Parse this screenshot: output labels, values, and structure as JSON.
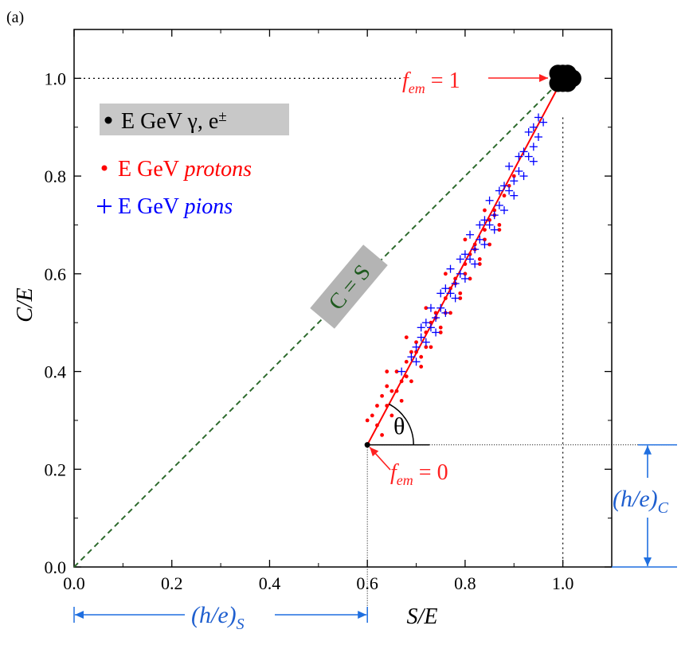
{
  "panel_label": "(a)",
  "chart_data": {
    "type": "scatter",
    "xlabel": "S/E",
    "ylabel": "C/E",
    "xlim": [
      0.0,
      1.1
    ],
    "ylim": [
      0.0,
      1.1
    ],
    "xticks": [
      "0.0",
      "0.2",
      "0.4",
      "0.6",
      "0.8",
      "1.0"
    ],
    "yticks": [
      "0.0",
      "0.2",
      "0.4",
      "0.6",
      "0.8",
      "1.0"
    ],
    "grid": false,
    "legend_position": "top-left",
    "series": [
      {
        "name": "E GeV γ, e±",
        "color": "#000000",
        "marker": "filled-circle",
        "points": [
          [
            1.0,
            1.0
          ],
          [
            0.99,
            1.01
          ],
          [
            1.01,
            0.99
          ],
          [
            1.0,
            0.99
          ],
          [
            0.99,
            0.99
          ],
          [
            1.01,
            1.01
          ],
          [
            1.0,
            1.01
          ],
          [
            1.02,
            1.0
          ]
        ]
      },
      {
        "name": "E GeV protons",
        "color": "#ff0000",
        "marker": "dot",
        "points": [
          [
            0.62,
            0.33
          ],
          [
            0.63,
            0.35
          ],
          [
            0.61,
            0.31
          ],
          [
            0.64,
            0.37
          ],
          [
            0.65,
            0.36
          ],
          [
            0.62,
            0.29
          ],
          [
            0.66,
            0.4
          ],
          [
            0.67,
            0.38
          ],
          [
            0.64,
            0.33
          ],
          [
            0.68,
            0.42
          ],
          [
            0.69,
            0.44
          ],
          [
            0.66,
            0.36
          ],
          [
            0.7,
            0.46
          ],
          [
            0.71,
            0.43
          ],
          [
            0.68,
            0.39
          ],
          [
            0.72,
            0.48
          ],
          [
            0.73,
            0.5
          ],
          [
            0.7,
            0.44
          ],
          [
            0.74,
            0.52
          ],
          [
            0.75,
            0.49
          ],
          [
            0.72,
            0.45
          ],
          [
            0.76,
            0.55
          ],
          [
            0.77,
            0.57
          ],
          [
            0.74,
            0.51
          ],
          [
            0.78,
            0.59
          ],
          [
            0.79,
            0.56
          ],
          [
            0.76,
            0.52
          ],
          [
            0.8,
            0.62
          ],
          [
            0.81,
            0.64
          ],
          [
            0.78,
            0.58
          ],
          [
            0.82,
            0.66
          ],
          [
            0.83,
            0.63
          ],
          [
            0.8,
            0.6
          ],
          [
            0.84,
            0.69
          ],
          [
            0.85,
            0.71
          ],
          [
            0.82,
            0.65
          ],
          [
            0.86,
            0.73
          ],
          [
            0.87,
            0.7
          ],
          [
            0.84,
            0.67
          ],
          [
            0.88,
            0.76
          ],
          [
            0.89,
            0.78
          ],
          [
            0.86,
            0.72
          ],
          [
            0.9,
            0.8
          ],
          [
            0.63,
            0.27
          ],
          [
            0.65,
            0.31
          ],
          [
            0.67,
            0.34
          ],
          [
            0.69,
            0.38
          ],
          [
            0.71,
            0.41
          ],
          [
            0.73,
            0.45
          ],
          [
            0.75,
            0.48
          ],
          [
            0.77,
            0.52
          ],
          [
            0.79,
            0.55
          ],
          [
            0.81,
            0.59
          ],
          [
            0.83,
            0.62
          ],
          [
            0.85,
            0.66
          ],
          [
            0.87,
            0.69
          ],
          [
            0.6,
            0.3
          ],
          [
            0.64,
            0.4
          ],
          [
            0.68,
            0.47
          ],
          [
            0.72,
            0.53
          ],
          [
            0.76,
            0.6
          ],
          [
            0.8,
            0.67
          ],
          [
            0.84,
            0.73
          ]
        ]
      },
      {
        "name": "E GeV pions",
        "color": "#0000ff",
        "marker": "plus",
        "points": [
          [
            0.67,
            0.4
          ],
          [
            0.69,
            0.43
          ],
          [
            0.7,
            0.45
          ],
          [
            0.71,
            0.47
          ],
          [
            0.72,
            0.46
          ],
          [
            0.73,
            0.49
          ],
          [
            0.74,
            0.51
          ],
          [
            0.75,
            0.53
          ],
          [
            0.76,
            0.52
          ],
          [
            0.77,
            0.56
          ],
          [
            0.78,
            0.58
          ],
          [
            0.79,
            0.6
          ],
          [
            0.8,
            0.59
          ],
          [
            0.81,
            0.63
          ],
          [
            0.82,
            0.65
          ],
          [
            0.83,
            0.67
          ],
          [
            0.84,
            0.66
          ],
          [
            0.85,
            0.7
          ],
          [
            0.86,
            0.72
          ],
          [
            0.87,
            0.74
          ],
          [
            0.88,
            0.73
          ],
          [
            0.89,
            0.77
          ],
          [
            0.9,
            0.79
          ],
          [
            0.91,
            0.81
          ],
          [
            0.92,
            0.8
          ],
          [
            0.93,
            0.84
          ],
          [
            0.94,
            0.86
          ],
          [
            0.95,
            0.88
          ],
          [
            0.95,
            0.92
          ],
          [
            0.96,
            0.91
          ],
          [
            0.72,
            0.5
          ],
          [
            0.74,
            0.48
          ],
          [
            0.76,
            0.57
          ],
          [
            0.78,
            0.55
          ],
          [
            0.8,
            0.64
          ],
          [
            0.82,
            0.62
          ],
          [
            0.84,
            0.71
          ],
          [
            0.86,
            0.69
          ],
          [
            0.88,
            0.78
          ],
          [
            0.9,
            0.76
          ],
          [
            0.92,
            0.85
          ],
          [
            0.94,
            0.83
          ],
          [
            0.7,
            0.42
          ],
          [
            0.73,
            0.53
          ],
          [
            0.77,
            0.61
          ],
          [
            0.81,
            0.68
          ],
          [
            0.85,
            0.75
          ],
          [
            0.89,
            0.82
          ],
          [
            0.93,
            0.89
          ],
          [
            0.71,
            0.49
          ],
          [
            0.75,
            0.56
          ],
          [
            0.79,
            0.63
          ],
          [
            0.83,
            0.7
          ],
          [
            0.87,
            0.77
          ],
          [
            0.91,
            0.84
          ],
          [
            0.94,
            0.9
          ]
        ]
      }
    ],
    "lines": [
      {
        "label": "C = S",
        "from": [
          0.0,
          0.0
        ],
        "to": [
          1.0,
          1.0
        ],
        "style": "dashed",
        "color": "#2e6b2e"
      },
      {
        "from": [
          0.6,
          0.25
        ],
        "to": [
          1.0,
          1.0
        ],
        "style": "solid",
        "color": "#ff0000"
      }
    ],
    "annotations": {
      "fem1": "f_em = 1",
      "fem0": "f_em = 0",
      "theta": "θ",
      "he_s": "(h/e)_S",
      "he_c": "(h/e)_C",
      "diag": "C = S"
    },
    "reference_points": {
      "fem0": [
        0.6,
        0.25
      ],
      "fem1": [
        1.0,
        1.0
      ]
    }
  }
}
